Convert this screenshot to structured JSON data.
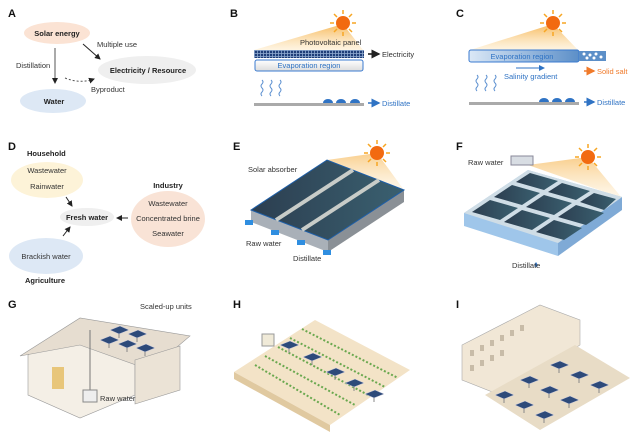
{
  "panels": {
    "A": {
      "label": "A",
      "solar": "Solar energy",
      "water": "Water",
      "electricity": "Electricity / Resource",
      "distillation": "Distillation",
      "multiple_use": "Multiple use",
      "byproduct": "Byproduct"
    },
    "B": {
      "label": "B",
      "pv_panel": "Photovoltaic panel",
      "evaporation": "Evaporation region",
      "electricity": "Electricity",
      "distillate": "Distillate"
    },
    "C": {
      "label": "C",
      "evaporation": "Evaporation region",
      "salinity": "Salinity gradient",
      "solid_salt": "Solid salt",
      "distillate": "Distillate"
    },
    "D": {
      "label": "D",
      "household": "Household",
      "household_items": [
        "Wastewater",
        "Rainwater"
      ],
      "fresh_water": "Fresh water",
      "industry": "Industry",
      "industry_items": [
        "Wastewater",
        "Concentrated brine",
        "Seawater"
      ],
      "agriculture_item": "Brackish water",
      "agriculture": "Agriculture"
    },
    "E": {
      "label": "E",
      "absorber": "Solar absorber",
      "raw_water": "Raw water",
      "distillate": "Distillate"
    },
    "F": {
      "label": "F",
      "raw_water": "Raw water",
      "distillate": "Distillate"
    },
    "G": {
      "label": "G",
      "units": "Scaled-up units",
      "raw_water": "Raw water"
    },
    "H": {
      "label": "H"
    },
    "I": {
      "label": "I"
    }
  },
  "colors": {
    "sun": "#f26a10",
    "water_blue": "#2f73c4",
    "salt_orange": "#f07a2a",
    "panel_dark": "#2c4458"
  }
}
